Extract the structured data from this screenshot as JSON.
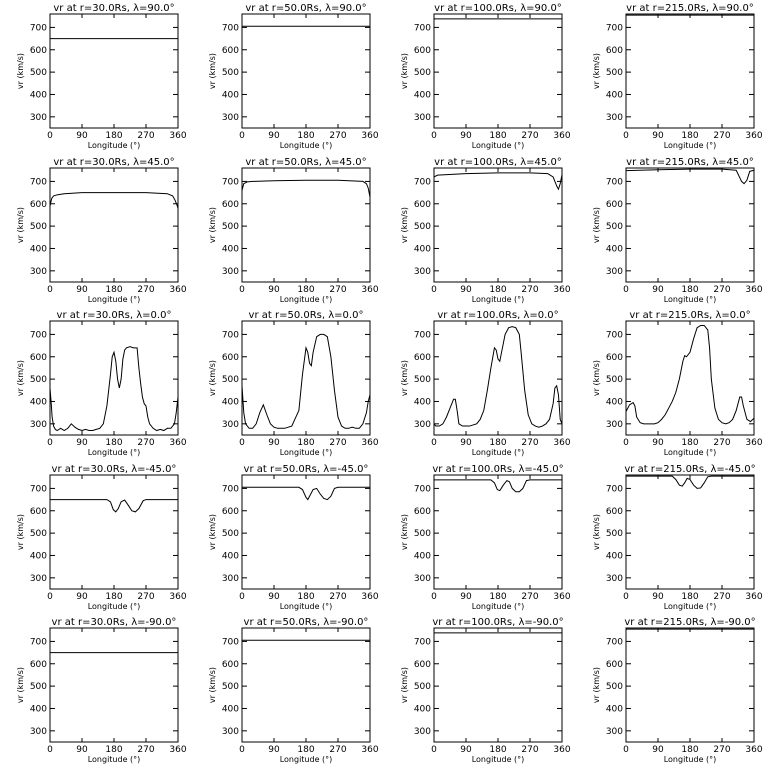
{
  "chart_data": {
    "type": "line",
    "xlabel": "Longitude (°)",
    "ylabel": "vr (km/s)",
    "xlim": [
      0,
      360
    ],
    "ylim": [
      250,
      760
    ],
    "xticks": [
      0,
      90,
      180,
      270,
      360
    ],
    "yticks": [
      300,
      400,
      500,
      600,
      700
    ],
    "grid": false,
    "columns": [
      "30.0Rs",
      "50.0Rs",
      "100.0Rs",
      "215.0Rs"
    ],
    "rows": [
      "90.0°",
      "45.0°",
      "0.0°",
      "-45.0°",
      "-90.0°"
    ],
    "panels": [
      {
        "title": "vr at r=30.0Rs, λ=90.0°",
        "x": [
          0,
          360
        ],
        "y": [
          650,
          650
        ]
      },
      {
        "title": "vr at r=50.0Rs, λ=90.0°",
        "x": [
          0,
          360
        ],
        "y": [
          705,
          705
        ]
      },
      {
        "title": "vr at r=100.0Rs, λ=90.0°",
        "x": [
          0,
          360
        ],
        "y": [
          738,
          738
        ]
      },
      {
        "title": "vr at r=215.0Rs, λ=90.0°",
        "x": [
          0,
          360
        ],
        "y": [
          755,
          755
        ]
      },
      {
        "title": "vr at r=30.0Rs, λ=45.0°",
        "x": [
          0,
          5,
          10,
          20,
          40,
          90,
          180,
          270,
          330,
          345,
          352,
          358,
          360
        ],
        "y": [
          590,
          625,
          635,
          640,
          645,
          650,
          650,
          650,
          645,
          635,
          615,
          590,
          580
        ]
      },
      {
        "title": "vr at r=50.0Rs, λ=45.0°",
        "x": [
          0,
          5,
          15,
          30,
          90,
          180,
          270,
          340,
          350,
          355,
          360
        ],
        "y": [
          660,
          690,
          698,
          700,
          703,
          705,
          705,
          700,
          690,
          670,
          630
        ]
      },
      {
        "title": "vr at r=100.0Rs, λ=45.0°",
        "x": [
          0,
          10,
          90,
          180,
          270,
          320,
          335,
          345,
          350,
          355,
          360
        ],
        "y": [
          720,
          728,
          735,
          738,
          738,
          735,
          720,
          680,
          665,
          690,
          730
        ]
      },
      {
        "title": "vr at r=215.0Rs, λ=45.0°",
        "x": [
          0,
          90,
          180,
          270,
          310,
          325,
          332,
          340,
          348,
          360
        ],
        "y": [
          748,
          752,
          755,
          755,
          750,
          700,
          690,
          705,
          745,
          750
        ]
      },
      {
        "title": "vr at r=30.0Rs, λ=0.0°",
        "x": [
          0,
          3,
          6,
          10,
          15,
          20,
          30,
          40,
          50,
          60,
          70,
          80,
          90,
          100,
          110,
          120,
          130,
          140,
          150,
          160,
          170,
          175,
          180,
          185,
          190,
          195,
          200,
          205,
          210,
          215,
          225,
          235,
          245,
          250,
          255,
          260,
          265,
          270,
          275,
          280,
          290,
          300,
          310,
          320,
          330,
          340,
          350,
          355,
          360
        ],
        "y": [
          460,
          400,
          330,
          290,
          275,
          270,
          280,
          270,
          280,
          300,
          285,
          275,
          270,
          275,
          270,
          270,
          275,
          280,
          300,
          380,
          520,
          600,
          620,
          580,
          500,
          460,
          500,
          590,
          630,
          640,
          645,
          640,
          640,
          550,
          480,
          420,
          390,
          380,
          330,
          300,
          280,
          270,
          275,
          270,
          280,
          280,
          300,
          350,
          420
        ]
      },
      {
        "title": "vr at r=50.0Rs, λ=0.0°",
        "x": [
          0,
          5,
          10,
          20,
          30,
          40,
          50,
          60,
          70,
          80,
          90,
          100,
          120,
          140,
          160,
          170,
          180,
          185,
          190,
          195,
          200,
          210,
          220,
          230,
          240,
          250,
          260,
          270,
          280,
          290,
          300,
          310,
          320,
          330,
          340,
          350,
          355,
          360
        ],
        "y": [
          470,
          350,
          300,
          280,
          280,
          300,
          350,
          385,
          340,
          300,
          285,
          280,
          280,
          290,
          360,
          520,
          640,
          620,
          570,
          560,
          620,
          690,
          700,
          700,
          690,
          600,
          450,
          330,
          290,
          280,
          280,
          285,
          280,
          280,
          300,
          350,
          400,
          430
        ]
      },
      {
        "title": "vr at r=100.0Rs, λ=0.0°",
        "x": [
          0,
          5,
          15,
          25,
          35,
          45,
          55,
          60,
          65,
          70,
          80,
          90,
          100,
          110,
          120,
          130,
          140,
          150,
          160,
          170,
          175,
          180,
          185,
          190,
          200,
          210,
          220,
          230,
          240,
          245,
          255,
          265,
          275,
          285,
          295,
          305,
          315,
          325,
          335,
          340,
          345,
          350,
          355,
          360
        ],
        "y": [
          300,
          290,
          290,
          300,
          330,
          370,
          410,
          410,
          360,
          300,
          290,
          290,
          290,
          295,
          300,
          320,
          360,
          450,
          550,
          640,
          630,
          590,
          580,
          620,
          700,
          730,
          735,
          730,
          700,
          620,
          450,
          340,
          300,
          290,
          285,
          290,
          300,
          320,
          390,
          460,
          470,
          430,
          320,
          300
        ]
      },
      {
        "title": "vr at r=215.0Rs, λ=0.0°",
        "x": [
          0,
          10,
          20,
          25,
          30,
          40,
          50,
          60,
          70,
          80,
          90,
          100,
          110,
          120,
          130,
          140,
          150,
          160,
          165,
          170,
          180,
          190,
          200,
          210,
          220,
          230,
          235,
          240,
          250,
          260,
          270,
          280,
          290,
          300,
          310,
          315,
          320,
          325,
          330,
          340,
          350,
          360
        ],
        "y": [
          355,
          385,
          395,
          380,
          330,
          305,
          300,
          300,
          300,
          300,
          305,
          320,
          340,
          370,
          400,
          440,
          500,
          580,
          605,
          600,
          620,
          680,
          730,
          740,
          740,
          720,
          640,
          500,
          370,
          320,
          305,
          300,
          305,
          320,
          360,
          390,
          420,
          420,
          380,
          320,
          310,
          325
        ]
      },
      {
        "title": "vr at r=30.0Rs, λ=-45.0°",
        "x": [
          0,
          90,
          160,
          170,
          178,
          185,
          192,
          200,
          210,
          220,
          230,
          240,
          250,
          262,
          270,
          360
        ],
        "y": [
          650,
          650,
          650,
          640,
          605,
          595,
          610,
          640,
          648,
          625,
          600,
          595,
          610,
          645,
          650,
          650
        ]
      },
      {
        "title": "vr at r=50.0Rs, λ=-45.0°",
        "x": [
          0,
          90,
          160,
          170,
          180,
          185,
          190,
          200,
          210,
          220,
          230,
          240,
          250,
          260,
          270,
          360
        ],
        "y": [
          705,
          705,
          705,
          695,
          660,
          650,
          665,
          695,
          700,
          675,
          655,
          650,
          665,
          700,
          705,
          705
        ]
      },
      {
        "title": "vr at r=100.0Rs, λ=-45.0°",
        "x": [
          0,
          90,
          160,
          170,
          178,
          185,
          195,
          205,
          212,
          220,
          230,
          240,
          250,
          260,
          270,
          360
        ],
        "y": [
          738,
          738,
          738,
          725,
          695,
          690,
          715,
          735,
          730,
          700,
          685,
          685,
          700,
          735,
          738,
          738
        ]
      },
      {
        "title": "vr at r=215.0Rs, λ=-45.0°",
        "x": [
          0,
          90,
          130,
          140,
          150,
          158,
          165,
          172,
          180,
          190,
          200,
          210,
          220,
          230,
          240,
          360
        ],
        "y": [
          755,
          755,
          755,
          740,
          715,
          710,
          725,
          745,
          740,
          715,
          700,
          702,
          725,
          752,
          755,
          755
        ]
      },
      {
        "title": "vr at r=30.0Rs, λ=-90.0°",
        "x": [
          0,
          360
        ],
        "y": [
          650,
          650
        ]
      },
      {
        "title": "vr at r=50.0Rs, λ=-90.0°",
        "x": [
          0,
          360
        ],
        "y": [
          705,
          705
        ]
      },
      {
        "title": "vr at r=100.0Rs, λ=-90.0°",
        "x": [
          0,
          360
        ],
        "y": [
          738,
          738
        ]
      },
      {
        "title": "vr at r=215.0Rs, λ=-90.0°",
        "x": [
          0,
          360
        ],
        "y": [
          755,
          755
        ]
      }
    ]
  }
}
